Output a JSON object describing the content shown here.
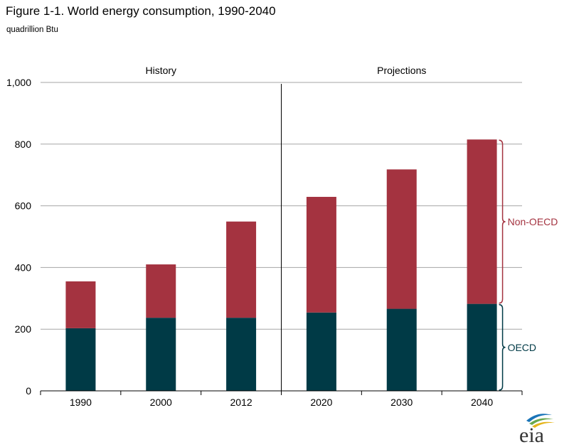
{
  "figure": {
    "title": "Figure 1-1. World energy consumption, 1990-2040",
    "units": "quadrillion Btu"
  },
  "chart_data": {
    "type": "bar",
    "stacked": true,
    "categories": [
      "1990",
      "2000",
      "2012",
      "2020",
      "2030",
      "2040"
    ],
    "series": [
      {
        "name": "OECD",
        "values": [
          203,
          237,
          237,
          254,
          266,
          282
        ],
        "color": "#003a46"
      },
      {
        "name": "Non-OECD",
        "values": [
          152,
          173,
          312,
          375,
          452,
          533
        ],
        "color": "#a43340"
      }
    ],
    "ylim": [
      0,
      1000
    ],
    "yticks": [
      0,
      200,
      400,
      600,
      800,
      1000
    ],
    "ytick_labels": [
      "0",
      "200",
      "400",
      "600",
      "800",
      "1,000"
    ],
    "sections": [
      {
        "label": "History",
        "categories": [
          "1990",
          "2000",
          "2012"
        ]
      },
      {
        "label": "Projections",
        "categories": [
          "2020",
          "2030",
          "2040"
        ]
      }
    ],
    "bracket_annotations": [
      {
        "label": "Non-OECD",
        "color": "#a43340"
      },
      {
        "label": "OECD",
        "color": "#003a46"
      }
    ],
    "grid": true,
    "gridline_color": "#a6a6a6"
  },
  "logo": {
    "text": "eia"
  }
}
